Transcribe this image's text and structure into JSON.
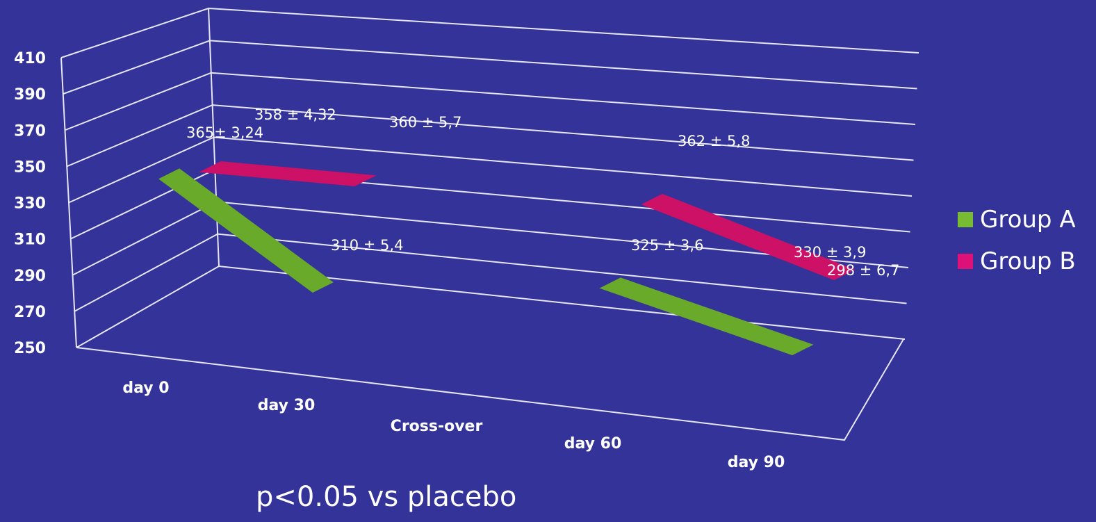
{
  "chart_data": {
    "type": "line",
    "style": "3d-ribbon",
    "categories": [
      "day 0",
      "day 30",
      "Cross-over",
      "day 60",
      "day 90"
    ],
    "yticks": [
      250,
      270,
      290,
      310,
      330,
      350,
      370,
      390,
      410
    ],
    "ylim": [
      250,
      410
    ],
    "grid": true,
    "legend_position": "right",
    "series": [
      {
        "name": "Group A",
        "color": "#6aaa2a",
        "segments": [
          {
            "from": {
              "x": "day 0",
              "y": 365
            },
            "to": {
              "x": "day 30",
              "y": 310
            }
          },
          {
            "from": {
              "x": "day 60",
              "y": 325
            },
            "to": {
              "x": "day 90",
              "y": 298
            }
          }
        ],
        "labels": [
          "365± 3,24",
          "310 ± 5,4",
          "325 ± 3,6",
          "298 ± 6,7"
        ]
      },
      {
        "name": "Group B",
        "color": "#cc1166",
        "segments": [
          {
            "from": {
              "x": "day 0",
              "y": 358
            },
            "to": {
              "x": "day 30",
              "y": 360
            }
          },
          {
            "from": {
              "x": "day 60",
              "y": 362
            },
            "to": {
              "x": "day 90",
              "y": 330
            }
          }
        ],
        "labels": [
          "358 ± 4,32",
          "360 ± 5,7",
          "362 ± 5,8",
          "330 ± 3,9"
        ]
      }
    ]
  },
  "legend": [
    {
      "label": "Group A",
      "color": "#77bb33"
    },
    {
      "label": "Group B",
      "color": "#dd1177"
    }
  ],
  "footnote": "p<0.05 vs placebo"
}
